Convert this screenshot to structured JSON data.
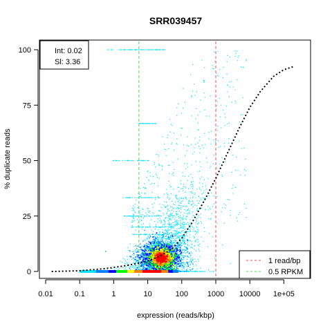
{
  "chart_data": {
    "type": "scatter",
    "title": "SRR039457",
    "xlabel": "expression (reads/kbp)",
    "ylabel": "% duplicate reads",
    "x_scale": "log10",
    "xlim": [
      0.01,
      400000
    ],
    "ylim": [
      0,
      100
    ],
    "x_ticks": [
      {
        "value": 0.01,
        "label": "0.01"
      },
      {
        "value": 0.1,
        "label": "0.1"
      },
      {
        "value": 1,
        "label": "1"
      },
      {
        "value": 10,
        "label": "10"
      },
      {
        "value": 100,
        "label": "100"
      },
      {
        "value": 1000,
        "label": "1000"
      },
      {
        "value": 10000,
        "label": "10000"
      },
      {
        "value": 100000,
        "label": "1e+05"
      }
    ],
    "y_ticks": [
      {
        "value": 0,
        "label": "0"
      },
      {
        "value": 25,
        "label": "25"
      },
      {
        "value": 50,
        "label": "50"
      },
      {
        "value": 75,
        "label": "75"
      },
      {
        "value": 100,
        "label": "100"
      }
    ],
    "fit_info": {
      "intercept": "Int: 0.02",
      "slope": "Sl: 3.36"
    },
    "fit_curve": {
      "color": "#000000",
      "style": "dotted",
      "x": [
        0.015,
        0.1,
        0.5,
        1,
        2,
        5,
        10,
        20,
        50,
        100,
        200,
        500,
        1000,
        2000,
        5000,
        10000,
        20000,
        50000,
        100000,
        200000
      ],
      "y": [
        0,
        0.3,
        1.2,
        1.8,
        2.5,
        3.6,
        4.8,
        6.5,
        10,
        15,
        22,
        33,
        42,
        52,
        65,
        74,
        81,
        88,
        91,
        92.5
      ]
    },
    "reference_lines": [
      {
        "name": "1 read/bp",
        "x": 1000,
        "color": "#ff4d4d",
        "style": "dashed"
      },
      {
        "name": "0.5 RPKM",
        "x": 5.5,
        "color": "#4ddd4d",
        "style": "dashed"
      }
    ],
    "legend": {
      "placement": "bottom-right",
      "entries": [
        {
          "label": "1 read/bp",
          "color": "#ff4d4d"
        },
        {
          "label": "0.5 RPKM",
          "color": "#4ddd4d"
        }
      ]
    },
    "density": {
      "description_colors": [
        "#00e5ff",
        "#0080ff",
        "#0000ff",
        "#00ff00",
        "#ffff00",
        "#ff8000",
        "#ff0000"
      ],
      "core_center": {
        "x": 25,
        "y": 6
      },
      "baseline_band": {
        "x_from": 0.1,
        "x_to": 80,
        "y": 0
      }
    },
    "grid": false
  }
}
